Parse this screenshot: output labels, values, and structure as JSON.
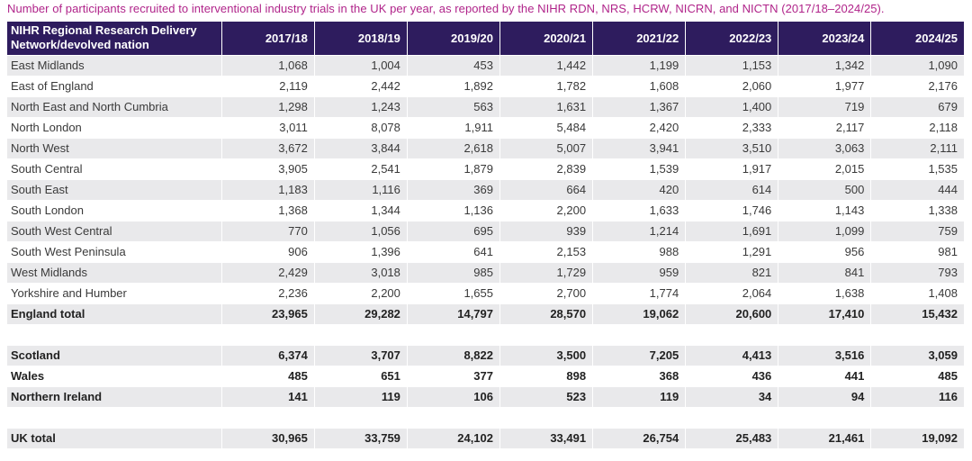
{
  "caption": "Number of participants recruited to interventional industry trials in the UK per year, as reported by the NIHR RDN, NRS, HCRW, NICRN, and NICTN (2017/18–2024/25).",
  "table": {
    "header": {
      "name_line1": "NIHR Regional Research Delivery",
      "name_line2": "Network/devolved nation",
      "years": [
        "2017/18",
        "2018/19",
        "2019/20",
        "2020/21",
        "2021/22",
        "2022/23",
        "2023/24",
        "2024/25"
      ]
    },
    "rows": [
      {
        "name": "East Midlands",
        "values": [
          "1,068",
          "1,004",
          "453",
          "1,442",
          "1,199",
          "1,153",
          "1,342",
          "1,090"
        ]
      },
      {
        "name": "East of England",
        "values": [
          "2,119",
          "2,442",
          "1,892",
          "1,782",
          "1,608",
          "2,060",
          "1,977",
          "2,176"
        ]
      },
      {
        "name": "North East and North Cumbria",
        "values": [
          "1,298",
          "1,243",
          "563",
          "1,631",
          "1,367",
          "1,400",
          "719",
          "679"
        ]
      },
      {
        "name": "North London",
        "values": [
          "3,011",
          "8,078",
          "1,911",
          "5,484",
          "2,420",
          "2,333",
          "2,117",
          "2,118"
        ]
      },
      {
        "name": "North West",
        "values": [
          "3,672",
          "3,844",
          "2,618",
          "5,007",
          "3,941",
          "3,510",
          "3,063",
          "2,111"
        ]
      },
      {
        "name": "South Central",
        "values": [
          "3,905",
          "2,541",
          "1,879",
          "2,839",
          "1,539",
          "1,917",
          "2,015",
          "1,535"
        ]
      },
      {
        "name": "South East",
        "values": [
          "1,183",
          "1,116",
          "369",
          "664",
          "420",
          "614",
          "500",
          "444"
        ]
      },
      {
        "name": "South London",
        "values": [
          "1,368",
          "1,344",
          "1,136",
          "2,200",
          "1,633",
          "1,746",
          "1,143",
          "1,338"
        ]
      },
      {
        "name": "South West Central",
        "values": [
          "770",
          "1,056",
          "695",
          "939",
          "1,214",
          "1,691",
          "1,099",
          "759"
        ]
      },
      {
        "name": "South West Peninsula",
        "values": [
          "906",
          "1,396",
          "641",
          "2,153",
          "988",
          "1,291",
          "956",
          "981"
        ]
      },
      {
        "name": "West Midlands",
        "values": [
          "2,429",
          "3,018",
          "985",
          "1,729",
          "959",
          "821",
          "841",
          "793"
        ]
      },
      {
        "name": "Yorkshire and Humber",
        "values": [
          "2,236",
          "2,200",
          "1,655",
          "2,700",
          "1,774",
          "2,064",
          "1,638",
          "1,408"
        ]
      },
      {
        "name": "England total",
        "values": [
          "23,965",
          "29,282",
          "14,797",
          "28,570",
          "19,062",
          "20,600",
          "17,410",
          "15,432"
        ]
      },
      {
        "name": "Scotland",
        "values": [
          "6,374",
          "3,707",
          "8,822",
          "3,500",
          "7,205",
          "4,413",
          "3,516",
          "3,059"
        ]
      },
      {
        "name": "Wales",
        "values": [
          "485",
          "651",
          "377",
          "898",
          "368",
          "436",
          "441",
          "485"
        ]
      },
      {
        "name": "Northern Ireland",
        "values": [
          "141",
          "119",
          "106",
          "523",
          "119",
          "34",
          "94",
          "116"
        ]
      },
      {
        "name": "UK total",
        "values": [
          "30,965",
          "33,759",
          "24,102",
          "33,491",
          "26,754",
          "25,483",
          "21,461",
          "19,092"
        ]
      }
    ]
  }
}
